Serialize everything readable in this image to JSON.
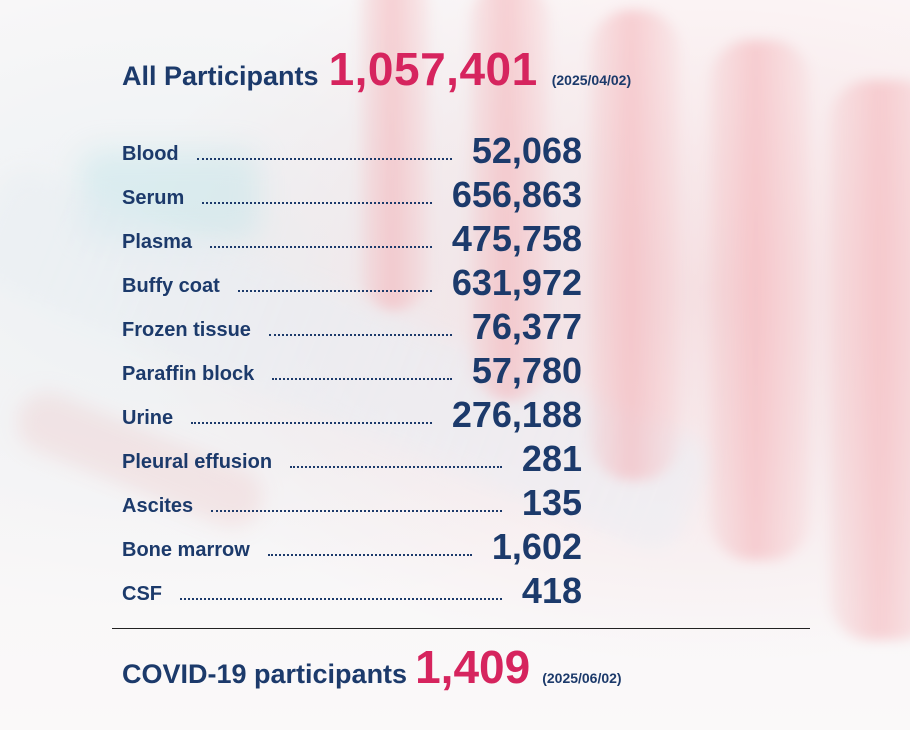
{
  "total": {
    "label": "All Participants",
    "value": "1,057,401",
    "date": "(2025/04/02)"
  },
  "samples": [
    {
      "name": "Blood",
      "value": "52,068"
    },
    {
      "name": "Serum",
      "value": "656,863"
    },
    {
      "name": "Plasma",
      "value": "475,758"
    },
    {
      "name": "Buffy coat",
      "value": "631,972"
    },
    {
      "name": "Frozen tissue",
      "value": "76,377"
    },
    {
      "name": "Paraffin block",
      "value": "57,780"
    },
    {
      "name": "Urine",
      "value": "276,188"
    },
    {
      "name": "Pleural effusion",
      "value": "281"
    },
    {
      "name": "Ascites",
      "value": "135"
    },
    {
      "name": "Bone marrow",
      "value": "1,602"
    },
    {
      "name": "CSF",
      "value": "418"
    }
  ],
  "covid": {
    "label": "COVID-19 participants",
    "value": "1,409",
    "date": "(2025/06/02)"
  },
  "colors": {
    "navy": "#1c3a6b",
    "accent": "#d6245e"
  }
}
